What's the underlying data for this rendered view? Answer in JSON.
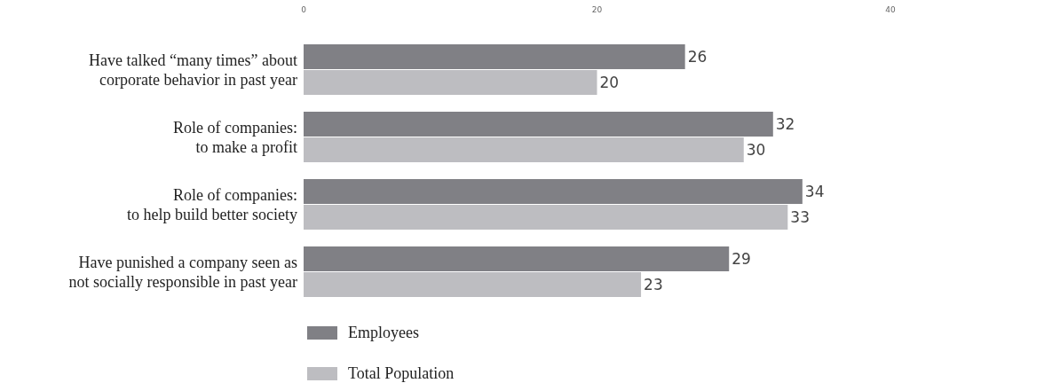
{
  "chart_data": {
    "type": "bar",
    "orientation": "horizontal",
    "categories": [
      "Have talked “many times” about corporate behavior in past year",
      "Role of companies: to make a profit",
      "Role of companies: to help build better society",
      "Have punished a company seen as not socially responsible in past year"
    ],
    "series": [
      {
        "name": "Employees",
        "color": "#808085",
        "values": [
          26,
          32,
          34,
          29
        ]
      },
      {
        "name": "Total Population",
        "color": "#bdbdc1",
        "values": [
          20,
          30,
          33,
          23
        ]
      }
    ],
    "xlim": [
      0,
      40
    ],
    "xticks": [
      0,
      20,
      40
    ],
    "data_labels": true,
    "legend": "bottom",
    "grid": false
  }
}
